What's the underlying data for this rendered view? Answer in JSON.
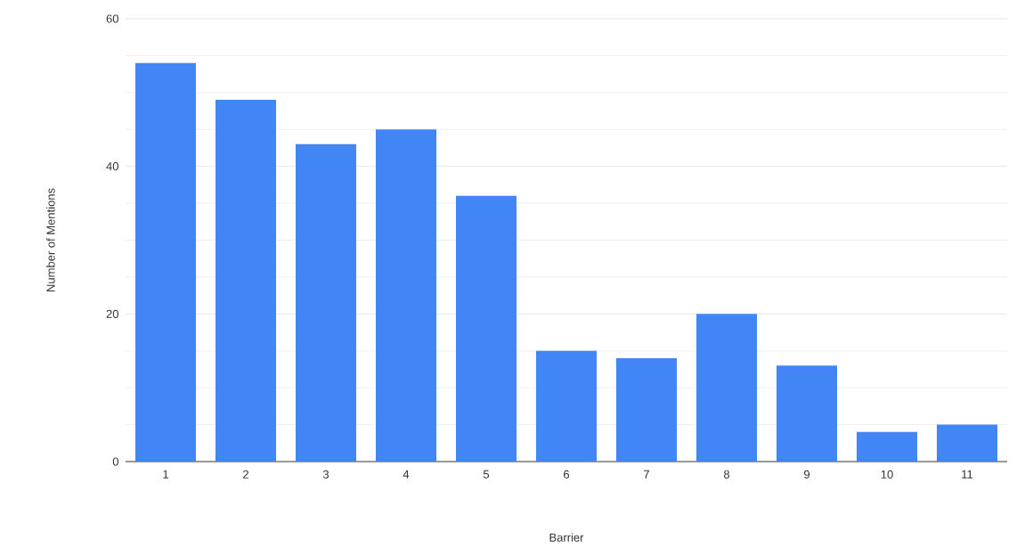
{
  "chart_data": {
    "type": "bar",
    "xlabel": "Barrier",
    "ylabel": "Number of Mentions",
    "categories": [
      "1",
      "2",
      "3",
      "4",
      "5",
      "6",
      "7",
      "8",
      "9",
      "10",
      "11"
    ],
    "values": [
      54,
      49,
      43,
      45,
      36,
      15,
      14,
      20,
      13,
      4,
      5
    ],
    "color": "#4285f4",
    "ylim": [
      0,
      60
    ],
    "yticks": [
      0,
      20,
      40,
      60
    ],
    "grid": "y"
  }
}
